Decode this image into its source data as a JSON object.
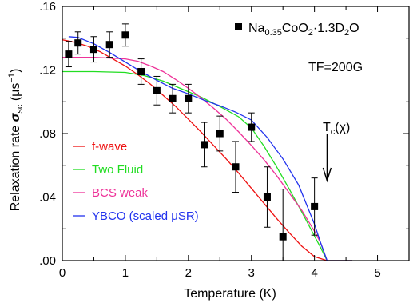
{
  "chart_data": {
    "type": "scatter",
    "xlabel": "Temperature (K)",
    "ylabel": {
      "prefix": "Relaxation rate ",
      "symbol": "σ",
      "sub": "sc",
      "units": "(μs",
      "exp": "−1",
      "close": ")"
    },
    "xlim": [
      0,
      5.5
    ],
    "ylim": [
      0,
      0.16
    ],
    "xticks": [
      0,
      1,
      2,
      3,
      4,
      5
    ],
    "xtick_labels": [
      "0",
      "1",
      "2",
      "3",
      "4",
      "5"
    ],
    "yticks": [
      0,
      0.04,
      0.08,
      0.12,
      0.16
    ],
    "ytick_labels": [
      ".00",
      ".04",
      ".08",
      ".12",
      ".16"
    ],
    "sample_label": {
      "a": "Na",
      "b": "0.35",
      "c": "CoO",
      "d": "2",
      "e": "·1.3D",
      "f": "2",
      "g": "O"
    },
    "field_label": "TF=200G",
    "tc_label": {
      "main": "T",
      "sub": "c",
      "paren": "(χ)"
    },
    "tc_arrow_x": 4.2,
    "points": {
      "x": [
        0.1,
        0.25,
        0.5,
        0.75,
        1.0,
        1.25,
        1.5,
        1.75,
        2.0,
        2.25,
        2.5,
        2.75,
        3.0,
        3.25,
        3.5,
        4.0
      ],
      "y": [
        0.13,
        0.137,
        0.133,
        0.136,
        0.142,
        0.119,
        0.107,
        0.102,
        0.102,
        0.073,
        0.08,
        0.059,
        0.084,
        0.04,
        0.015,
        0.034
      ],
      "err": [
        0.008,
        0.007,
        0.008,
        0.008,
        0.007,
        0.008,
        0.009,
        0.009,
        0.009,
        0.014,
        0.011,
        0.016,
        0.009,
        0.019,
        0.03,
        0.018
      ]
    },
    "series": [
      {
        "name": "f-wave",
        "color": "#ee1111",
        "x": [
          0.0,
          0.2,
          0.4,
          0.6,
          0.8,
          1.0,
          1.2,
          1.4,
          1.6,
          1.8,
          2.0,
          2.2,
          2.4,
          2.6,
          2.8,
          3.0,
          3.2,
          3.4,
          3.6,
          3.8,
          4.0,
          4.2,
          4.6
        ],
        "y": [
          0.139,
          0.1375,
          0.135,
          0.1315,
          0.127,
          0.1225,
          0.117,
          0.111,
          0.104,
          0.097,
          0.089,
          0.081,
          0.0725,
          0.064,
          0.055,
          0.0455,
          0.036,
          0.0265,
          0.0175,
          0.009,
          0.0025,
          0.0,
          0.0
        ]
      },
      {
        "name": "Two Fluid",
        "color": "#22dd22",
        "x": [
          0.0,
          0.5,
          1.0,
          1.3,
          1.6,
          1.9,
          2.2,
          2.5,
          2.8,
          3.0,
          3.2,
          3.4,
          3.6,
          3.8,
          4.0,
          4.1,
          4.2,
          4.6
        ],
        "y": [
          0.119,
          0.119,
          0.1185,
          0.1165,
          0.113,
          0.108,
          0.103,
          0.097,
          0.0905,
          0.0835,
          0.072,
          0.059,
          0.045,
          0.0305,
          0.0155,
          0.008,
          0.0,
          0.0
        ]
      },
      {
        "name": "BCS weak",
        "color": "#ee3399",
        "x": [
          0.0,
          0.5,
          1.0,
          1.2,
          1.4,
          1.6,
          1.8,
          2.0,
          2.2,
          2.4,
          2.6,
          2.8,
          3.0,
          3.2,
          3.4,
          3.6,
          3.8,
          4.0,
          4.1,
          4.2,
          4.6
        ],
        "y": [
          0.128,
          0.128,
          0.127,
          0.1255,
          0.1225,
          0.119,
          0.114,
          0.1085,
          0.1025,
          0.096,
          0.089,
          0.081,
          0.0725,
          0.0635,
          0.0535,
          0.0425,
          0.0315,
          0.0185,
          0.011,
          0.0,
          0.0
        ]
      },
      {
        "name": "YBCO (scaled μSR)",
        "color": "#2233ee",
        "x": [
          0.1,
          0.25,
          0.5,
          0.75,
          1.0,
          1.25,
          1.5,
          1.75,
          2.0,
          2.25,
          2.5,
          2.75,
          3.0,
          3.25,
          3.5,
          3.75,
          4.0,
          4.1,
          4.2,
          4.6
        ],
        "y": [
          0.141,
          0.1405,
          0.1365,
          0.131,
          0.125,
          0.119,
          0.1135,
          0.1085,
          0.105,
          0.101,
          0.0975,
          0.0935,
          0.0885,
          0.0775,
          0.064,
          0.0475,
          0.023,
          0.011,
          0.0,
          0.0
        ]
      }
    ],
    "legend_position": "lower-left",
    "grid": false
  }
}
